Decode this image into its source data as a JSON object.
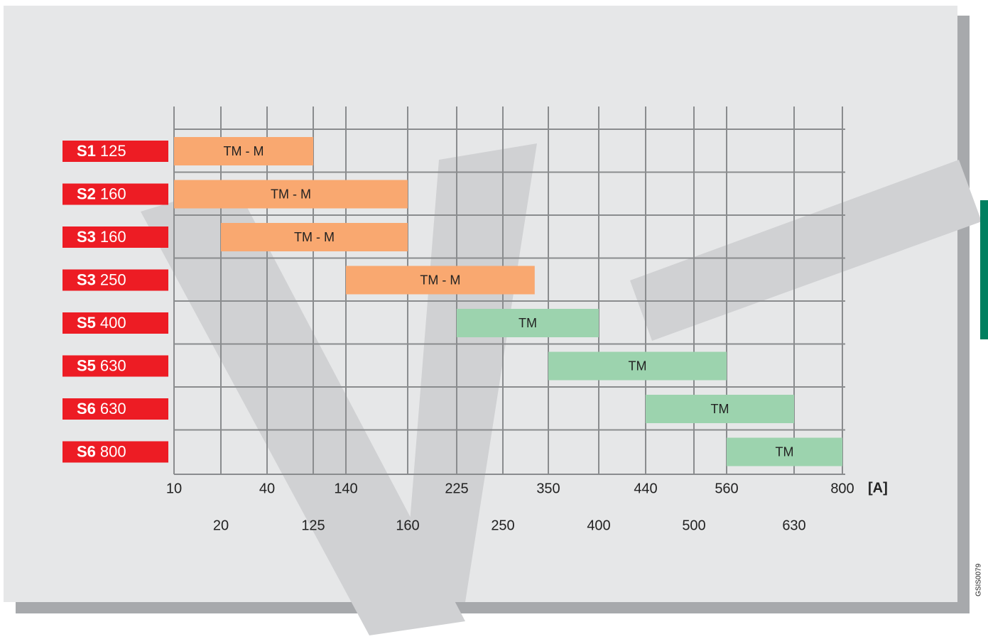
{
  "chart_data": {
    "type": "range_bar",
    "bars": [
      {
        "frame": "S1",
        "size": "125",
        "from": 10,
        "to": 125,
        "label": "TM - M",
        "color": "#f9a870"
      },
      {
        "frame": "S2",
        "size": "160",
        "from": 10,
        "to": 160,
        "label": "TM - M",
        "color": "#f9a870"
      },
      {
        "frame": "S3",
        "size": "160",
        "from": 20,
        "to": 160,
        "label": "TM - M",
        "color": "#f9a870"
      },
      {
        "frame": "S3",
        "size": "250",
        "from": 140,
        "to": 320,
        "label": "TM - M",
        "color": "#f9a870"
      },
      {
        "frame": "S5",
        "size": "400",
        "from": 225,
        "to": 400,
        "label": "TM",
        "color": "#9cd3ae"
      },
      {
        "frame": "S5",
        "size": "630",
        "from": 350,
        "to": 560,
        "label": "TM",
        "color": "#9cd3ae"
      },
      {
        "frame": "S6",
        "size": "630",
        "from": 440,
        "to": 630,
        "label": "TM",
        "color": "#9cd3ae"
      },
      {
        "frame": "S6",
        "size": "800",
        "from": 560,
        "to": 800,
        "label": "TM",
        "color": "#9cd3ae"
      }
    ],
    "xticks": [
      10,
      20,
      40,
      125,
      140,
      160,
      225,
      250,
      350,
      400,
      440,
      500,
      560,
      630,
      800
    ],
    "xlim": [
      10,
      800
    ],
    "x_unit": "[A]",
    "grid": true,
    "code": "GSIS0079"
  }
}
